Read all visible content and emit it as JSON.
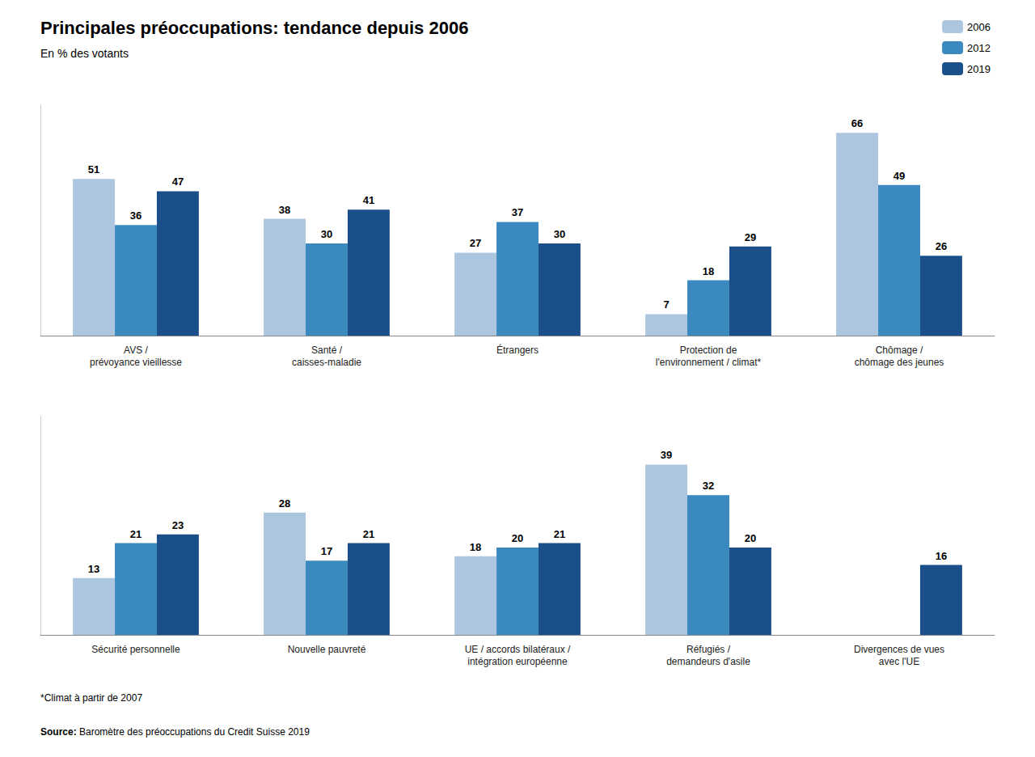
{
  "chart_data": [
    {
      "type": "bar",
      "title": "Principales préoccupations: tendance depuis 2006",
      "subtitle": "En % des votants",
      "categories": [
        "AVS /\nprévoyance vieillesse",
        "Santé /\ncaisses-maladie",
        "Étrangers",
        "Protection de\nl'environnement / climat*",
        "Chômage /\nchômage des jeunes"
      ],
      "series": [
        {
          "name": "2006",
          "color": "#adc6e0",
          "values": [
            51,
            38,
            27,
            7,
            66
          ]
        },
        {
          "name": "2012",
          "color": "#3a8abf",
          "values": [
            36,
            30,
            37,
            18,
            49
          ]
        },
        {
          "name": "2019",
          "color": "#1a4f8a",
          "values": [
            47,
            41,
            30,
            29,
            26
          ]
        }
      ],
      "ylim": [
        0,
        75
      ],
      "grid": false,
      "data_labels": true,
      "tick_labels": "x",
      "legend": "upper right"
    },
    {
      "type": "bar",
      "categories": [
        "Sécurité personnelle",
        "Nouvelle pauvreté",
        "UE / accords bilatéraux /\nintégration européenne",
        "Réfugiés /\ndemandeurs d'asile",
        "Divergences de vues\navec l'UE"
      ],
      "series": [
        {
          "name": "2006",
          "color": "#adc6e0",
          "values": [
            13,
            28,
            18,
            39,
            null
          ]
        },
        {
          "name": "2012",
          "color": "#3a8abf",
          "values": [
            21,
            17,
            20,
            32,
            null
          ]
        },
        {
          "name": "2019",
          "color": "#1a4f8a",
          "values": [
            23,
            21,
            21,
            20,
            16
          ]
        }
      ],
      "ylim": [
        0,
        50
      ],
      "grid": false,
      "data_labels": true,
      "tick_labels": "x",
      "footnote": "*Climat à partir de 2007",
      "source": "Source: Baromètre des préoccupations du Credit Suisse 2019"
    }
  ]
}
